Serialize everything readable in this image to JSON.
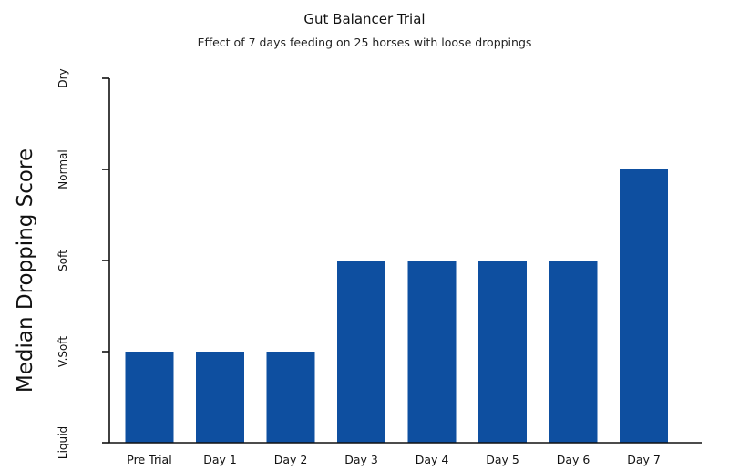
{
  "chart_data": {
    "type": "bar",
    "title": "Gut Balancer Trial",
    "subtitle": "Effect of 7 days feeding on 25 horses with loose droppings",
    "ylabel": "Median Dropping Score",
    "xlabel": "",
    "categories": [
      "Pre Trial",
      "Day 1",
      "Day 2",
      "Day 3",
      "Day 4",
      "Day 5",
      "Day 6",
      "Day 7"
    ],
    "values": [
      1,
      1,
      1,
      2,
      2,
      2,
      2,
      3
    ],
    "y_ticks": [
      {
        "value": 0,
        "label": "Liquid"
      },
      {
        "value": 1,
        "label": "V.Soft"
      },
      {
        "value": 2,
        "label": "Soft"
      },
      {
        "value": 3,
        "label": "Normal"
      },
      {
        "value": 4,
        "label": "Dry"
      }
    ],
    "ylim": [
      0,
      4
    ],
    "grid": false,
    "legend": "none",
    "bar_color": "#0e4fa0"
  }
}
